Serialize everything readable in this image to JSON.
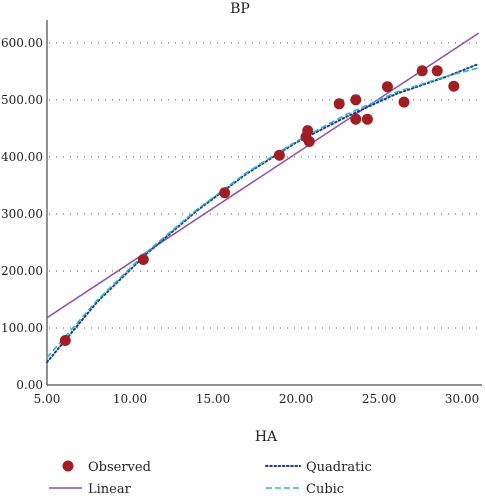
{
  "chart_data": {
    "type": "scatter",
    "title": "",
    "ylabel": "BP",
    "xlabel": "HA",
    "xlim": [
      5,
      31.2
    ],
    "ylim": [
      0,
      640
    ],
    "x_ticks": [
      5,
      10,
      15,
      20,
      25,
      30
    ],
    "x_tick_labels": [
      "5.00",
      "10.00",
      "15.00",
      "20.00",
      "25.00",
      "30.00"
    ],
    "y_ticks": [
      0,
      100,
      200,
      300,
      400,
      500,
      600
    ],
    "y_tick_labels": [
      "0.00",
      "100.00",
      "200.00",
      "300.00",
      "400.00",
      "500.00",
      "600.00"
    ],
    "grid": "horizontal dotted",
    "legend_position": "bottom",
    "series": [
      {
        "name": "Observed",
        "kind": "scatter",
        "color": "#a01f25",
        "points": [
          [
            6.1,
            78
          ],
          [
            10.8,
            220
          ],
          [
            15.7,
            337
          ],
          [
            19.0,
            403
          ],
          [
            20.6,
            435
          ],
          [
            20.7,
            446
          ],
          [
            20.8,
            427
          ],
          [
            22.6,
            493
          ],
          [
            23.6,
            500
          ],
          [
            23.6,
            466
          ],
          [
            24.3,
            466
          ],
          [
            25.5,
            523
          ],
          [
            26.5,
            496
          ],
          [
            27.6,
            551
          ],
          [
            28.5,
            551
          ],
          [
            29.5,
            524
          ]
        ]
      },
      {
        "name": "Linear",
        "kind": "line",
        "style": "solid",
        "color": "#8f4fa8",
        "points": [
          [
            5.0,
            118
          ],
          [
            31.0,
            617
          ]
        ]
      },
      {
        "name": "Quadratic",
        "kind": "line",
        "style": "dotted",
        "color": "#1f3b8f",
        "points": [
          [
            5,
            40
          ],
          [
            8,
            145
          ],
          [
            11,
            230
          ],
          [
            14,
            305
          ],
          [
            17,
            370
          ],
          [
            20,
            425
          ],
          [
            23,
            470
          ],
          [
            26,
            510
          ],
          [
            29,
            540
          ],
          [
            31,
            563
          ]
        ]
      },
      {
        "name": "Cubic",
        "kind": "line",
        "style": "dashed",
        "color": "#35b4c9",
        "points": [
          [
            5,
            48
          ],
          [
            8,
            148
          ],
          [
            11,
            233
          ],
          [
            14,
            307
          ],
          [
            17,
            372
          ],
          [
            20,
            427
          ],
          [
            23,
            474
          ],
          [
            26,
            513
          ],
          [
            29,
            541
          ],
          [
            31,
            556
          ]
        ]
      }
    ]
  }
}
